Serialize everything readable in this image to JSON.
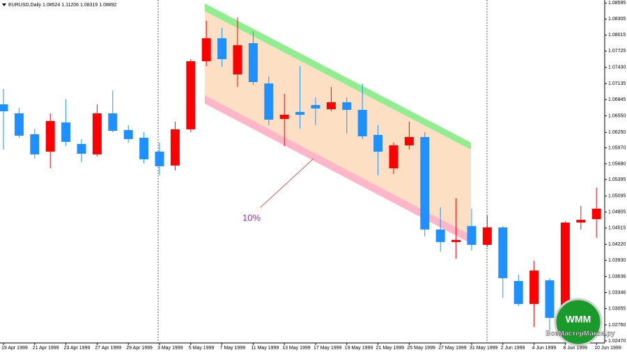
{
  "chart_data": {
    "type": "candlestick",
    "title": "EURUSD,Daily 1.08524 1.11206 1.08319 1.08892",
    "annotation": "10%",
    "categories": [
      "19 Apr 1999",
      null,
      "21 Apr 1999",
      null,
      "23 Apr 1999",
      null,
      "27 Apr 1999",
      null,
      "29 Apr 1999",
      null,
      "3 May 1999",
      null,
      "5 May 1999",
      null,
      "7 May 1999",
      null,
      "11 May 1999",
      null,
      "13 May 1999",
      null,
      "17 May 1999",
      null,
      "19 May 1999",
      null,
      "21 May 1999",
      null,
      "25 May 1999",
      null,
      "27 May 1999",
      null,
      "31 May 1999",
      null,
      "2 Jun 1999",
      null,
      "4 Jun 1999",
      null,
      "8 Jun 1999",
      null,
      "10 Jun 1999"
    ],
    "open": [
      1.06758,
      1.06595,
      1.06216,
      1.05901,
      1.06431,
      1.0604,
      1.05851,
      1.06595,
      1.06292,
      1.06153,
      1.05901,
      1.05649,
      1.06305,
      1.0754,
      1.07956,
      1.07301,
      1.07868,
      1.07137,
      1.06494,
      1.0662,
      1.06746,
      1.0667,
      1.06796,
      1.06658,
      1.06204,
      1.05598,
      1.06015,
      1.06166,
      1.04489,
      1.04262,
      1.04552,
      1.04211,
      1.04527,
      1.03556,
      1.03139,
      1.03568,
      1.02887,
      1.04615,
      1.04678
    ],
    "high": [
      1.07036,
      1.06695,
      1.06317,
      1.06595,
      1.06847,
      1.06128,
      1.06758,
      1.07011,
      1.0638,
      1.06254,
      1.06065,
      1.06443,
      1.07578,
      1.08272,
      1.08146,
      1.08335,
      1.08083,
      1.07263,
      1.06948,
      1.07452,
      1.06885,
      1.07074,
      1.06885,
      1.07137,
      1.0638,
      1.06065,
      1.06443,
      1.06254,
      1.04892,
      1.05056,
      1.04867,
      1.04741,
      1.04552,
      1.03669,
      1.03921,
      1.03606,
      1.0464,
      1.04917,
      1.05245
    ],
    "low": [
      1.05939,
      1.06153,
      1.05775,
      1.05598,
      1.06002,
      1.05712,
      1.05813,
      1.06254,
      1.06065,
      1.05687,
      1.05472,
      1.05561,
      1.06254,
      1.07452,
      1.07439,
      1.07074,
      1.07112,
      1.0638,
      1.06002,
      1.06317,
      1.0638,
      1.06632,
      1.06229,
      1.06128,
      1.05472,
      1.05497,
      1.05939,
      1.04363,
      1.04085,
      1.03959,
      1.0411,
      1.04173,
      1.03253,
      1.03102,
      1.02723,
      1.0266,
      1.02786,
      1.04489,
      1.04337
    ],
    "close": [
      1.06632,
      1.06191,
      1.05851,
      1.06456,
      1.06078,
      1.05863,
      1.06595,
      1.06279,
      1.06128,
      1.05762,
      1.05636,
      1.06305,
      1.0754,
      1.07956,
      1.07578,
      1.0783,
      1.07162,
      1.06481,
      1.06569,
      1.06569,
      1.06683,
      1.06796,
      1.06658,
      1.06178,
      1.05901,
      1.06015,
      1.06166,
      1.04489,
      1.04262,
      1.043,
      1.04211,
      1.04527,
      1.03606,
      1.03139,
      1.03745,
      1.02887,
      1.04615,
      1.04665,
      1.04867
    ],
    "up_color": "#ff0000",
    "down_color": "#1e90ff",
    "ylim": [
      1.0247,
      1.0865
    ],
    "yticks": [
      1.08595,
      1.08305,
      1.08015,
      1.07725,
      {
        "value": 1.0743,
        "label": "1.07430"
      },
      1.07135,
      1.06845,
      {
        "value": 1.0655,
        "label": "1.06550"
      },
      {
        "value": 1.0625,
        "label": "1.06250"
      },
      {
        "value": 1.0597,
        "label": "1.05970"
      },
      {
        "value": 1.0568,
        "label": "1.05680"
      },
      1.05395,
      1.05095,
      1.04805,
      1.04515,
      {
        "value": 1.0422,
        "label": "1.04220"
      },
      {
        "value": 1.0393,
        "label": "1.03930"
      },
      1.03636,
      1.03346,
      1.03055,
      {
        "value": 1.0276,
        "label": "1.02760"
      },
      {
        "value": 1.0247,
        "label": "1.02470"
      }
    ],
    "grid": false
  },
  "watermark": {
    "logo": "WMM",
    "site": "ВсеМастерМакси.ру"
  }
}
